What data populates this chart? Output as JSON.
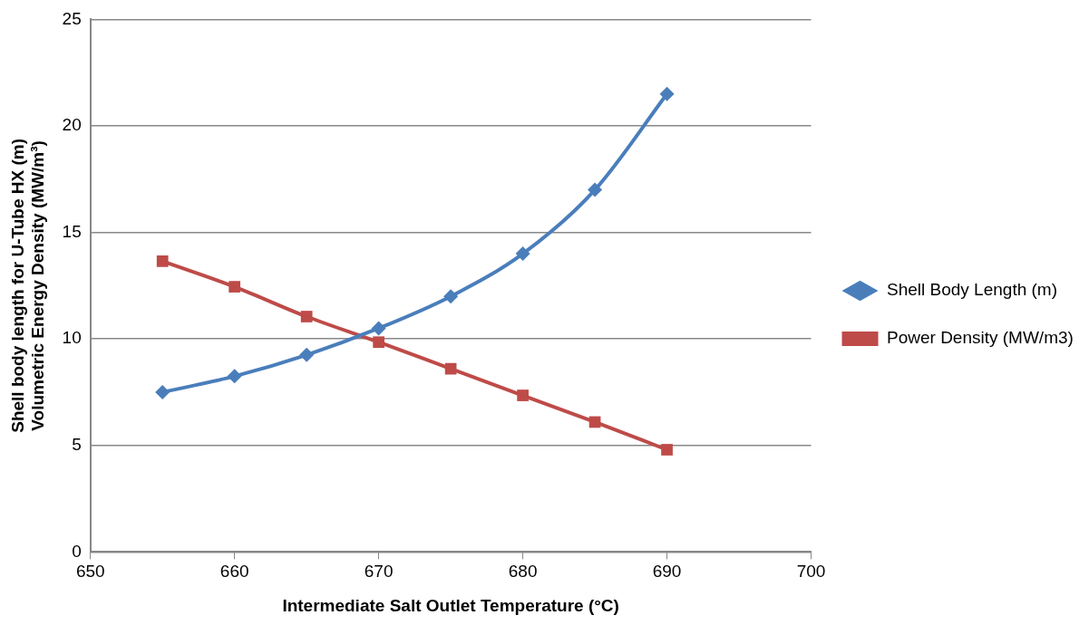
{
  "chart_data": {
    "type": "line",
    "xlabel": "Intermediate Salt Outlet Temperature (°C)",
    "ylabel": "Shell body length for U-Tube HX (m)\nVolumetric Energy Density (MW/m³)",
    "x": [
      655,
      660,
      665,
      670,
      675,
      680,
      685,
      690
    ],
    "series": [
      {
        "name": "Shell Body Length (m)",
        "color": "#4a7ebb",
        "marker": "diamond",
        "values": [
          7.5,
          8.25,
          9.25,
          10.5,
          12,
          14,
          17,
          21.5
        ]
      },
      {
        "name": "Power Density (MW/m3)",
        "color": "#be4b48",
        "marker": "square",
        "values": [
          13.65,
          12.45,
          11.05,
          9.85,
          8.6,
          7.35,
          6.1,
          4.8
        ]
      }
    ],
    "xlim": [
      650,
      700
    ],
    "xticks": [
      650,
      660,
      670,
      680,
      690,
      700
    ],
    "ylim": [
      0,
      25
    ],
    "yticks": [
      0,
      5,
      10,
      15,
      20,
      25
    ],
    "grid": "y",
    "legend": "right",
    "line_style": "solid"
  }
}
